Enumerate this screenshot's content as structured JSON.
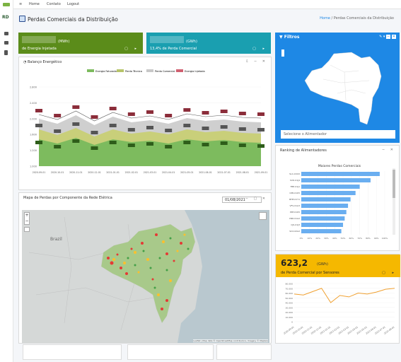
{
  "nav": {
    "home": "Home",
    "contato": "Contato",
    "logout": "Logout"
  },
  "brand": {
    "short": "RD"
  },
  "page": {
    "title": "Perdas Comerciais da Distribuição",
    "crumb_home": "Home",
    "crumb_sep": "/",
    "crumb_current": "Perdas Comerciais da Distribuição"
  },
  "stat_energy": {
    "unit": "(MWh)",
    "label": "de Energia Injetada"
  },
  "stat_loss": {
    "unit": "(GWh)",
    "label": "13,4% de Perda Comercial"
  },
  "filtros": {
    "title": "Filtros",
    "select_placeholder": "Selecione o Alimentador"
  },
  "balanco": {
    "title": "Balanço Energético",
    "chart_data": {
      "type": "area",
      "series": [
        {
          "name": "Energia Faturada"
        },
        {
          "name": "Perda Técnica"
        },
        {
          "name": "Perda Comercial"
        },
        {
          "name": "Energia Injetada"
        }
      ],
      "x": [
        "2020-09-01",
        "2020-10-01",
        "2020-11-01",
        "2020-12-01",
        "2021-01-01",
        "2021-02-01",
        "2021-03-01",
        "2021-04-01",
        "2021-05-01",
        "2021-06-01",
        "2021-07-01",
        "2021-08-01",
        "2021-09-01"
      ],
      "y_ticks": [
        "2.800",
        "2.400",
        "2.000",
        "1.600",
        "1.200",
        "1.000"
      ]
    }
  },
  "mapa": {
    "title": "Mapa de Perdas por Componente da Rede Elétrica",
    "date": "01/08/2021",
    "country_label": "Brazil",
    "attribution": "Leaflet | Map data © OpenStreetMap contributors, Imagery © Mapbox",
    "zoom_in": "+",
    "zoom_out": "−"
  },
  "ranking": {
    "title": "Ranking de Alimentadores",
    "chart_data": {
      "type": "bar",
      "title": "Maiores Perdas Comerciais",
      "categories": [
        "SLC-XXXX",
        "SVD-01J4",
        "FBE-01J1",
        "CPR-01K5",
        "BHE-01Y1",
        "VFS-01A3",
        "PRT-01K5",
        "CNR-01A2",
        "CJS-01J3",
        "SCX-02A2"
      ],
      "values": [
        94,
        83,
        70,
        65,
        59,
        56,
        54,
        52,
        50,
        48
      ],
      "x_ticks": [
        "0%",
        "10%",
        "20%",
        "30%",
        "40%",
        "50%",
        "60%",
        "70%",
        "80%",
        "90%",
        "100%"
      ]
    }
  },
  "sensor": {
    "value": "623,2",
    "unit": "(GWh)",
    "label": "de Perda Comercial por Sensores",
    "chart_data": {
      "type": "line",
      "x": [
        "2020-09-01",
        "2020-10-01",
        "2020-11-01",
        "2020-12-01",
        "2021-01-01",
        "2021-02-01",
        "2021-03-01",
        "2021-04-01",
        "2021-05-01",
        "2021-06-01",
        "2021-07-01",
        "2021-08-01"
      ],
      "values": [
        58000,
        56000,
        63000,
        70000,
        40000,
        55000,
        52000,
        60000,
        58000,
        62000,
        68000,
        70000
      ],
      "y_ticks": [
        "80.000",
        "70.000",
        "60.000",
        "50.000",
        "40.000",
        "30.000",
        "20.000",
        "10.000",
        "0"
      ]
    }
  },
  "colors": {
    "green": "#5b8c1a",
    "teal": "#1a9fb0",
    "blue": "#1e88e5",
    "yellow": "#f5b800",
    "area": "#7dbb5e",
    "bar": "#6aaef0",
    "line": "#f0a030"
  }
}
